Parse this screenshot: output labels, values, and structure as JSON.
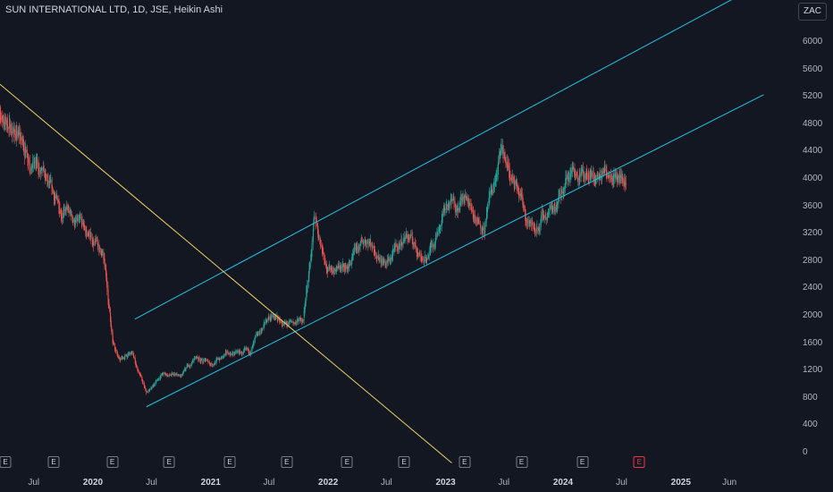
{
  "title": "SUN INTERNATIONAL LTD, 1D, JSE, Heikin Ashi",
  "currency_button": "ZAC",
  "y_ticks": [
    "6000",
    "5600",
    "5200",
    "4800",
    "4400",
    "4000",
    "3600",
    "3200",
    "2800",
    "2400",
    "2000",
    "1600",
    "1200",
    "800",
    "400",
    "0"
  ],
  "x_ticks": [
    {
      "label": "Jul",
      "bold": false
    },
    {
      "label": "2020",
      "bold": true
    },
    {
      "label": "Jul",
      "bold": false
    },
    {
      "label": "2021",
      "bold": true
    },
    {
      "label": "Jul",
      "bold": false
    },
    {
      "label": "2022",
      "bold": true
    },
    {
      "label": "Jul",
      "bold": false
    },
    {
      "label": "2023",
      "bold": true
    },
    {
      "label": "Jul",
      "bold": false
    },
    {
      "label": "2024",
      "bold": true
    },
    {
      "label": "Jul",
      "bold": false
    },
    {
      "label": "2025",
      "bold": true
    },
    {
      "label": "Jun",
      "bold": false
    }
  ],
  "earnings_markers": [
    {
      "label": "E",
      "date": "2019-03-01",
      "future": false
    },
    {
      "label": "E",
      "date": "2019-09-01",
      "future": false
    },
    {
      "label": "E",
      "date": "2020-03-01",
      "future": false
    },
    {
      "label": "E",
      "date": "2020-08-25",
      "future": false
    },
    {
      "label": "E",
      "date": "2021-03-01",
      "future": false
    },
    {
      "label": "E",
      "date": "2021-08-25",
      "future": false
    },
    {
      "label": "E",
      "date": "2022-03-01",
      "future": false
    },
    {
      "label": "E",
      "date": "2022-08-25",
      "future": false
    },
    {
      "label": "E",
      "date": "2023-03-01",
      "future": false
    },
    {
      "label": "E",
      "date": "2023-08-25",
      "future": false
    },
    {
      "label": "E",
      "date": "2024-03-01",
      "future": false
    },
    {
      "label": "E",
      "date": "2024-08-25",
      "future": true
    }
  ],
  "colors": {
    "background": "#131722",
    "up": "#26a69a",
    "down": "#ef5350",
    "channel": "#22c3e6",
    "trendline": "#f0d264"
  },
  "chart_data": {
    "type": "candlestick",
    "style": "Heikin Ashi",
    "symbol": "SUN INTERNATIONAL LTD",
    "interval": "1D",
    "exchange": "JSE",
    "currency": "ZAC",
    "ylim": [
      0,
      6200
    ],
    "xlim": [
      "2019-03-01",
      "2025-08-01"
    ],
    "price_path": [
      {
        "date": "2019-03-01",
        "close": 5000
      },
      {
        "date": "2019-05-01",
        "close": 4700
      },
      {
        "date": "2019-07-01",
        "close": 4250
      },
      {
        "date": "2019-09-01",
        "close": 3700
      },
      {
        "date": "2019-11-01",
        "close": 3400
      },
      {
        "date": "2020-01-01",
        "close": 3100
      },
      {
        "date": "2020-02-01",
        "close": 2900
      },
      {
        "date": "2020-03-01",
        "close": 1700
      },
      {
        "date": "2020-03-23",
        "close": 1350
      },
      {
        "date": "2020-05-01",
        "close": 1450
      },
      {
        "date": "2020-06-15",
        "close": 850
      },
      {
        "date": "2020-08-01",
        "close": 1150
      },
      {
        "date": "2020-10-01",
        "close": 1100
      },
      {
        "date": "2020-11-15",
        "close": 1400
      },
      {
        "date": "2021-01-01",
        "close": 1300
      },
      {
        "date": "2021-03-01",
        "close": 1450
      },
      {
        "date": "2021-05-01",
        "close": 1450
      },
      {
        "date": "2021-07-01",
        "close": 2000
      },
      {
        "date": "2021-09-01",
        "close": 1850
      },
      {
        "date": "2021-10-15",
        "close": 1950
      },
      {
        "date": "2021-11-20",
        "close": 3400
      },
      {
        "date": "2022-01-01",
        "close": 2700
      },
      {
        "date": "2022-03-01",
        "close": 2700
      },
      {
        "date": "2022-05-01",
        "close": 3150
      },
      {
        "date": "2022-07-01",
        "close": 2750
      },
      {
        "date": "2022-09-01",
        "close": 3200
      },
      {
        "date": "2022-11-01",
        "close": 2800
      },
      {
        "date": "2023-01-01",
        "close": 3600
      },
      {
        "date": "2023-03-01",
        "close": 3700
      },
      {
        "date": "2023-05-01",
        "close": 3300
      },
      {
        "date": "2023-06-25",
        "close": 4400
      },
      {
        "date": "2023-08-01",
        "close": 3900
      },
      {
        "date": "2023-10-01",
        "close": 3250
      },
      {
        "date": "2023-12-01",
        "close": 3600
      },
      {
        "date": "2024-02-01",
        "close": 4200
      },
      {
        "date": "2024-04-01",
        "close": 3950
      },
      {
        "date": "2024-06-01",
        "close": 4200
      },
      {
        "date": "2024-07-15",
        "close": 3950
      }
    ],
    "drawings": [
      {
        "name": "channel-upper",
        "color": "#22c3e6",
        "p1": {
          "date": "2020-05-10",
          "price": 1950
        },
        "p2": {
          "date": "2025-07-10",
          "price": 6700
        }
      },
      {
        "name": "channel-lower",
        "color": "#22c3e6",
        "p1": {
          "date": "2020-06-15",
          "price": 670
        },
        "p2": {
          "date": "2025-09-15",
          "price": 5230
        }
      },
      {
        "name": "downtrend-line",
        "color": "#f0d264",
        "p1": {
          "date": "2019-03-01",
          "price": 5450
        },
        "p2": {
          "date": "2023-01-20",
          "price": -150
        }
      }
    ]
  }
}
